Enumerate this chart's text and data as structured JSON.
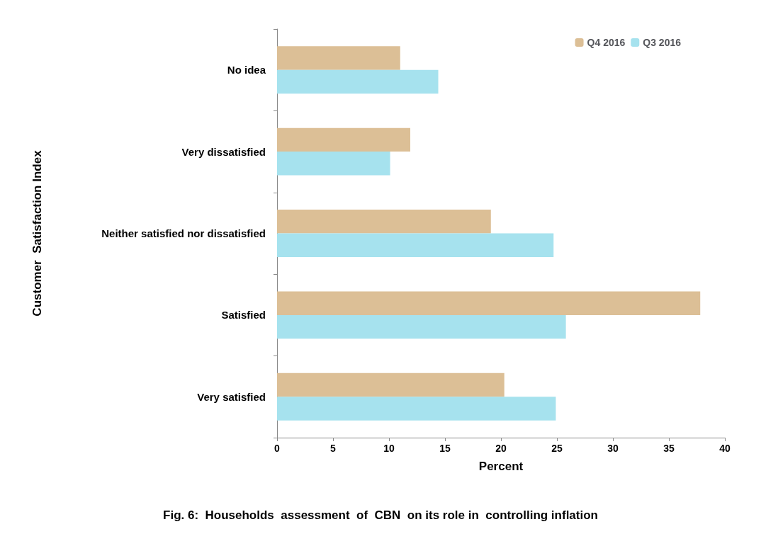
{
  "chart_data": {
    "type": "bar",
    "orientation": "horizontal",
    "title": "Fig. 6:  Households  assessment  of  CBN  on its role in  controlling inflation",
    "xlabel": "Percent",
    "ylabel": "Customer  Satisfaction Index",
    "categories": [
      "No idea",
      "Very dissatisfied",
      "Neither satisfied nor dissatisfied",
      "Satisfied",
      "Very satisfied"
    ],
    "series": [
      {
        "name": "Q4 2016",
        "color": "#dcbf96",
        "values": [
          11.0,
          11.9,
          19.1,
          37.8,
          20.3
        ]
      },
      {
        "name": "Q3 2016",
        "color": "#a6e2ee",
        "values": [
          14.4,
          10.1,
          24.7,
          25.8,
          24.9
        ]
      }
    ],
    "xlim": [
      0,
      40
    ],
    "xticks": [
      0,
      5,
      10,
      15,
      20,
      25,
      30,
      35,
      40
    ],
    "grid": false,
    "legend": "top right"
  }
}
